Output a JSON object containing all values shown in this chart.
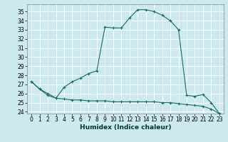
{
  "title": "",
  "xlabel": "Humidex (Indice chaleur)",
  "bg_color": "#cce9f0",
  "grid_color": "#ffffff",
  "line_color": "#1a6b5a",
  "xlim": [
    -0.5,
    23.5
  ],
  "ylim": [
    23.8,
    35.8
  ],
  "yticks": [
    24,
    25,
    26,
    27,
    28,
    29,
    30,
    31,
    32,
    33,
    34,
    35
  ],
  "xticks": [
    0,
    1,
    2,
    3,
    4,
    5,
    6,
    7,
    8,
    9,
    10,
    11,
    12,
    13,
    14,
    15,
    16,
    17,
    18,
    19,
    20,
    21,
    22,
    23
  ],
  "series1_x": [
    0,
    1,
    2,
    3,
    4,
    5,
    6,
    7,
    8,
    9,
    10,
    11,
    12,
    13,
    14,
    15,
    16,
    17,
    18,
    19,
    20,
    21,
    22,
    23
  ],
  "series1_y": [
    27.3,
    26.5,
    26.0,
    25.5,
    26.7,
    27.3,
    27.7,
    28.2,
    28.5,
    33.3,
    33.2,
    33.2,
    34.3,
    35.2,
    35.2,
    35.0,
    34.6,
    34.0,
    33.0,
    25.8,
    25.7,
    25.9,
    25.0,
    23.8
  ],
  "series2_x": [
    0,
    1,
    2,
    3,
    4,
    5,
    6,
    7,
    8,
    9,
    10,
    11,
    12,
    13,
    14,
    15,
    16,
    17,
    18,
    19,
    20,
    21,
    22,
    23
  ],
  "series2_y": [
    27.3,
    26.5,
    25.8,
    25.5,
    25.4,
    25.3,
    25.3,
    25.2,
    25.2,
    25.2,
    25.1,
    25.1,
    25.1,
    25.1,
    25.1,
    25.1,
    25.0,
    25.0,
    24.9,
    24.8,
    24.7,
    24.6,
    24.3,
    23.8
  ],
  "tick_labelsize": 5.5,
  "xlabel_fontsize": 6.5
}
